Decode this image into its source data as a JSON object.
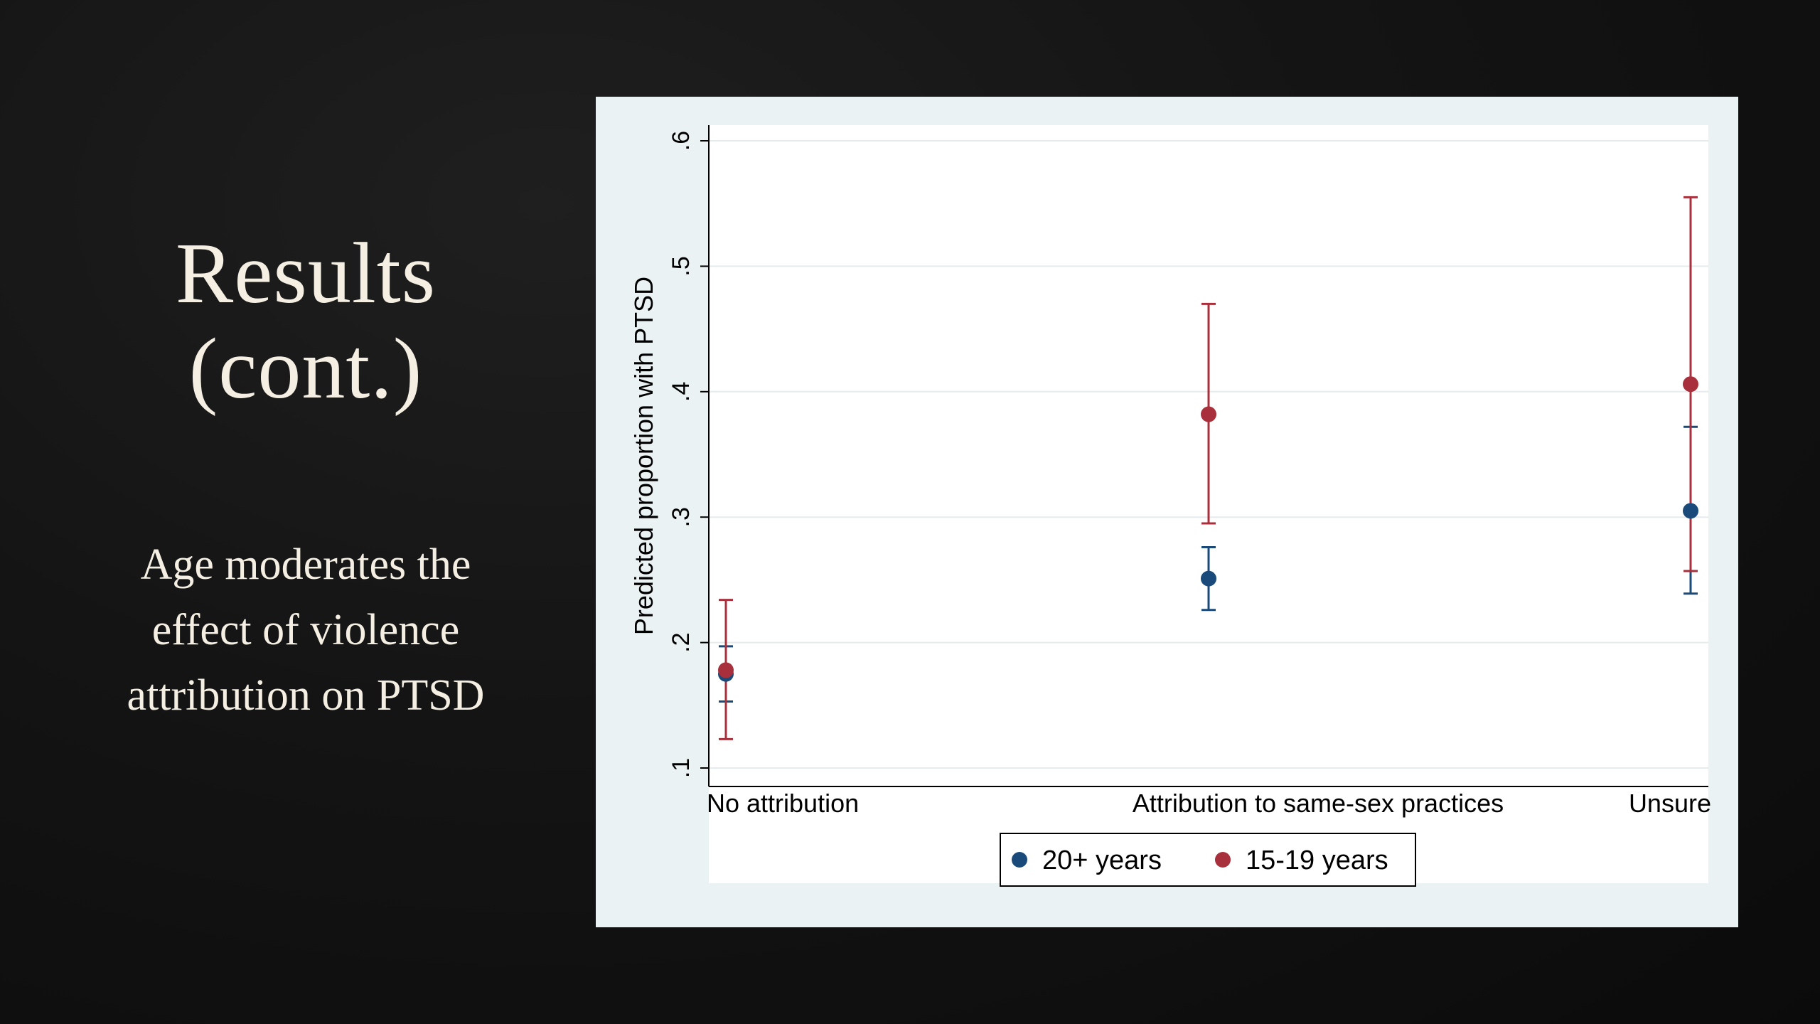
{
  "slide": {
    "title_lines": [
      "Results",
      "(cont.)"
    ],
    "subtitle_lines": [
      "Age moderates the",
      "effect of violence",
      "attribution on PTSD"
    ]
  },
  "colors": {
    "series_20plus": "#1a4a7a",
    "series_15_19": "#a8303c",
    "panel_background": "#eaf2f3",
    "plot_background": "#ffffff",
    "grid": "#e6ecee"
  },
  "chart_data": {
    "type": "scatter",
    "title": "",
    "xlabel": "",
    "ylabel": "Predicted proportion with PTSD",
    "categories": [
      "No attribution",
      "Attribution to same-sex practices",
      "Unsure"
    ],
    "ylim": [
      0.1,
      0.6
    ],
    "yticks": [
      0.1,
      0.2,
      0.3,
      0.4,
      0.5,
      0.6
    ],
    "ytick_labels": [
      ".1",
      ".2",
      ".3",
      ".4",
      ".5",
      ".6"
    ],
    "grid": true,
    "legend": "bottom",
    "series": [
      {
        "name": "20+ years",
        "color": "#1a4a7a",
        "values": [
          0.175,
          0.251,
          0.305
        ],
        "ci_low": [
          0.153,
          0.226,
          0.239
        ],
        "ci_high": [
          0.197,
          0.276,
          0.372
        ]
      },
      {
        "name": "15-19 years",
        "color": "#a8303c",
        "values": [
          0.178,
          0.382,
          0.406
        ],
        "ci_low": [
          0.123,
          0.295,
          0.257
        ],
        "ci_high": [
          0.234,
          0.47,
          0.555
        ]
      }
    ]
  }
}
